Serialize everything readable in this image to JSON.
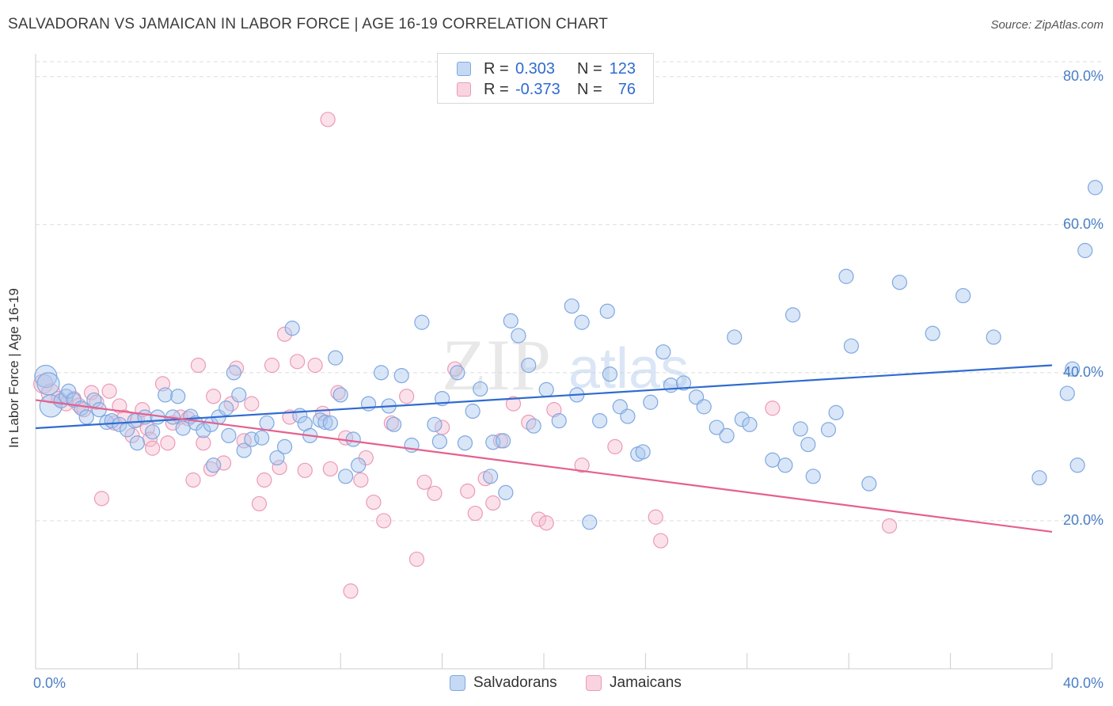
{
  "title": "SALVADORAN VS JAMAICAN IN LABOR FORCE | AGE 16-19 CORRELATION CHART",
  "source": "Source: ZipAtlas.com",
  "watermark": {
    "zip": "ZIP",
    "atlas": "atlas"
  },
  "colors": {
    "salvadoran_fill": "#a9c8f0",
    "salvadoran_stroke": "#7fa8e0",
    "salvadoran_line": "#2f6bd0",
    "jamaican_fill": "#f6bfd1",
    "jamaican_stroke": "#ec9ab5",
    "jamaican_line": "#e5608e",
    "tick_text": "#4a7ec7",
    "grid": "#dedede"
  },
  "legend": {
    "r_label": "R =",
    "n_label": "N =",
    "rows": [
      {
        "series": "Salvadorans",
        "r": "0.303",
        "n": "123"
      },
      {
        "series": "Jamaicans",
        "r": "-0.373",
        "n": "76"
      }
    ]
  },
  "bottom_legend": [
    "Salvadorans",
    "Jamaicans"
  ],
  "chart_data": {
    "type": "scatter",
    "title": "SALVADORAN VS JAMAICAN IN LABOR FORCE | AGE 16-19 CORRELATION CHART",
    "xlabel": "",
    "ylabel": "In Labor Force | Age 16-19",
    "xlim": [
      0,
      40
    ],
    "ylim": [
      0,
      82
    ],
    "x_tick_labels": [
      "0.0%",
      "40.0%"
    ],
    "y_ticks": [
      20,
      40,
      60,
      80
    ],
    "y_tick_labels": [
      "20.0%",
      "40.0%",
      "60.0%",
      "80.0%"
    ],
    "grid": true,
    "legend_position": "top-center",
    "series": [
      {
        "name": "Salvadorans",
        "trend": {
          "x": [
            0,
            40
          ],
          "y": [
            32.5,
            41.0
          ]
        },
        "points": [
          [
            0.4,
            39.5
          ],
          [
            0.5,
            38.5
          ],
          [
            0.6,
            35.5
          ],
          [
            1.0,
            36.2
          ],
          [
            1.2,
            36.8
          ],
          [
            1.3,
            37.5
          ],
          [
            1.5,
            36.3
          ],
          [
            1.8,
            35.2
          ],
          [
            2.0,
            34.0
          ],
          [
            2.3,
            36.3
          ],
          [
            2.5,
            35.0
          ],
          [
            2.8,
            33.3
          ],
          [
            3.0,
            33.5
          ],
          [
            3.3,
            33.0
          ],
          [
            3.6,
            32.3
          ],
          [
            3.9,
            33.5
          ],
          [
            4.0,
            30.5
          ],
          [
            4.3,
            34.0
          ],
          [
            4.6,
            32.0
          ],
          [
            4.8,
            34.0
          ],
          [
            5.1,
            37.0
          ],
          [
            5.4,
            34.0
          ],
          [
            5.6,
            36.8
          ],
          [
            5.8,
            32.5
          ],
          [
            6.1,
            34.1
          ],
          [
            6.3,
            33.2
          ],
          [
            6.6,
            32.2
          ],
          [
            6.9,
            33.0
          ],
          [
            7.0,
            27.5
          ],
          [
            7.2,
            34.0
          ],
          [
            7.5,
            35.2
          ],
          [
            7.6,
            31.5
          ],
          [
            7.8,
            40.0
          ],
          [
            8.0,
            37.0
          ],
          [
            8.2,
            29.5
          ],
          [
            8.5,
            31.0
          ],
          [
            8.9,
            31.2
          ],
          [
            9.1,
            33.2
          ],
          [
            9.5,
            28.5
          ],
          [
            9.8,
            30.0
          ],
          [
            10.1,
            46.0
          ],
          [
            10.4,
            34.2
          ],
          [
            10.6,
            33.1
          ],
          [
            10.8,
            31.5
          ],
          [
            11.2,
            33.6
          ],
          [
            11.4,
            33.3
          ],
          [
            11.6,
            33.2
          ],
          [
            11.8,
            42.0
          ],
          [
            12.0,
            37.0
          ],
          [
            12.2,
            26.0
          ],
          [
            12.5,
            31.0
          ],
          [
            12.7,
            27.5
          ],
          [
            13.1,
            35.8
          ],
          [
            13.6,
            40.0
          ],
          [
            13.9,
            35.5
          ],
          [
            14.1,
            33.0
          ],
          [
            14.4,
            39.6
          ],
          [
            14.8,
            30.2
          ],
          [
            15.2,
            46.8
          ],
          [
            15.7,
            33.0
          ],
          [
            15.9,
            30.7
          ],
          [
            16.0,
            36.5
          ],
          [
            16.6,
            40.0
          ],
          [
            16.9,
            30.5
          ],
          [
            17.2,
            34.8
          ],
          [
            17.5,
            37.8
          ],
          [
            17.9,
            26.0
          ],
          [
            18.0,
            30.6
          ],
          [
            18.4,
            30.8
          ],
          [
            18.5,
            23.8
          ],
          [
            18.7,
            47.0
          ],
          [
            19.0,
            45.0
          ],
          [
            19.4,
            41.0
          ],
          [
            19.6,
            32.8
          ],
          [
            20.1,
            37.7
          ],
          [
            20.6,
            33.5
          ],
          [
            21.1,
            49.0
          ],
          [
            21.3,
            37.0
          ],
          [
            21.5,
            46.8
          ],
          [
            21.8,
            19.8
          ],
          [
            22.2,
            33.5
          ],
          [
            22.5,
            48.3
          ],
          [
            22.6,
            39.8
          ],
          [
            23.0,
            35.4
          ],
          [
            23.3,
            34.1
          ],
          [
            23.7,
            29.0
          ],
          [
            23.9,
            29.3
          ],
          [
            24.2,
            36.0
          ],
          [
            24.7,
            42.8
          ],
          [
            25.0,
            38.3
          ],
          [
            25.5,
            38.6
          ],
          [
            26.0,
            36.7
          ],
          [
            26.3,
            35.4
          ],
          [
            26.8,
            32.6
          ],
          [
            27.2,
            31.5
          ],
          [
            27.5,
            44.8
          ],
          [
            27.8,
            33.7
          ],
          [
            28.1,
            33.0
          ],
          [
            29.0,
            28.2
          ],
          [
            29.5,
            27.5
          ],
          [
            29.8,
            47.8
          ],
          [
            30.1,
            32.4
          ],
          [
            30.4,
            30.3
          ],
          [
            30.6,
            26.0
          ],
          [
            31.2,
            32.3
          ],
          [
            31.5,
            34.6
          ],
          [
            31.9,
            53.0
          ],
          [
            32.1,
            43.6
          ],
          [
            32.8,
            25.0
          ],
          [
            34.0,
            52.2
          ],
          [
            35.3,
            45.3
          ],
          [
            36.5,
            50.4
          ],
          [
            37.7,
            44.8
          ],
          [
            39.5,
            25.8
          ],
          [
            40.6,
            37.2
          ],
          [
            41.3,
            56.5
          ],
          [
            41.7,
            65.0
          ],
          [
            40.8,
            40.5
          ],
          [
            41.0,
            27.5
          ]
        ]
      },
      {
        "name": "Jamaicans",
        "trend": {
          "x": [
            0,
            40
          ],
          "y": [
            36.3,
            18.5
          ]
        },
        "points": [
          [
            0.3,
            38.5
          ],
          [
            0.6,
            37.2
          ],
          [
            0.9,
            36.5
          ],
          [
            1.2,
            35.8
          ],
          [
            1.5,
            36.5
          ],
          [
            1.7,
            35.6
          ],
          [
            1.9,
            35.0
          ],
          [
            2.2,
            37.3
          ],
          [
            2.4,
            36.0
          ],
          [
            2.6,
            23.0
          ],
          [
            2.9,
            37.5
          ],
          [
            3.1,
            33.2
          ],
          [
            3.3,
            35.5
          ],
          [
            3.5,
            34.0
          ],
          [
            3.8,
            31.5
          ],
          [
            4.0,
            33.6
          ],
          [
            4.2,
            35.0
          ],
          [
            4.4,
            32.5
          ],
          [
            4.5,
            31.0
          ],
          [
            4.6,
            29.8
          ],
          [
            5.0,
            38.5
          ],
          [
            5.2,
            30.5
          ],
          [
            5.4,
            33.2
          ],
          [
            5.7,
            34.0
          ],
          [
            6.0,
            33.8
          ],
          [
            6.2,
            25.5
          ],
          [
            6.4,
            41.0
          ],
          [
            6.6,
            30.5
          ],
          [
            6.9,
            27.0
          ],
          [
            7.0,
            36.8
          ],
          [
            7.4,
            27.8
          ],
          [
            7.7,
            35.8
          ],
          [
            7.9,
            40.6
          ],
          [
            8.2,
            30.8
          ],
          [
            8.5,
            35.8
          ],
          [
            8.8,
            22.3
          ],
          [
            9.0,
            25.5
          ],
          [
            9.3,
            41.0
          ],
          [
            9.6,
            27.2
          ],
          [
            9.8,
            45.2
          ],
          [
            10.0,
            34.0
          ],
          [
            10.3,
            41.5
          ],
          [
            10.6,
            26.8
          ],
          [
            11.0,
            41.0
          ],
          [
            11.3,
            34.5
          ],
          [
            11.6,
            27.0
          ],
          [
            11.9,
            37.3
          ],
          [
            12.2,
            31.2
          ],
          [
            12.4,
            10.5
          ],
          [
            12.8,
            25.5
          ],
          [
            13.0,
            28.5
          ],
          [
            13.3,
            22.5
          ],
          [
            13.7,
            20.0
          ],
          [
            14.0,
            33.2
          ],
          [
            14.6,
            36.8
          ],
          [
            15.0,
            14.8
          ],
          [
            15.3,
            25.2
          ],
          [
            15.7,
            23.7
          ],
          [
            16.0,
            32.6
          ],
          [
            16.5,
            40.5
          ],
          [
            17.0,
            24.0
          ],
          [
            17.3,
            21.0
          ],
          [
            17.7,
            25.7
          ],
          [
            18.0,
            22.4
          ],
          [
            18.3,
            30.8
          ],
          [
            18.8,
            35.8
          ],
          [
            19.4,
            33.3
          ],
          [
            19.8,
            20.2
          ],
          [
            20.1,
            19.7
          ],
          [
            20.4,
            35.0
          ],
          [
            21.5,
            27.5
          ],
          [
            22.8,
            30.0
          ],
          [
            24.4,
            20.5
          ],
          [
            24.6,
            17.3
          ],
          [
            29.0,
            35.2
          ],
          [
            33.6,
            19.3
          ],
          [
            11.5,
            74.2
          ]
        ]
      }
    ]
  }
}
